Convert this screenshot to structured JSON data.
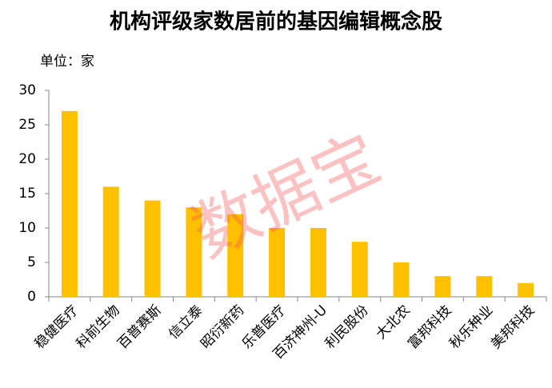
{
  "chart_data": {
    "type": "bar",
    "title": "机构评级家数居前的基因编辑概念股",
    "subtitle": "单位：家",
    "watermark": "数据宝",
    "categories": [
      "稳健医疗",
      "科前生物",
      "百普赛斯",
      "信立泰",
      "昭衍新药",
      "乐普医疗",
      "百济神州-U",
      "利民股份",
      "大北农",
      "富邦科技",
      "秋乐种业",
      "美邦科技"
    ],
    "values": [
      27,
      16,
      14,
      13,
      12,
      10,
      10,
      8,
      5,
      3,
      3,
      2
    ],
    "color": "#ffc000",
    "ylim": [
      0,
      30
    ],
    "yticks": [
      0,
      5,
      10,
      15,
      20,
      25,
      30
    ],
    "grid": false
  }
}
